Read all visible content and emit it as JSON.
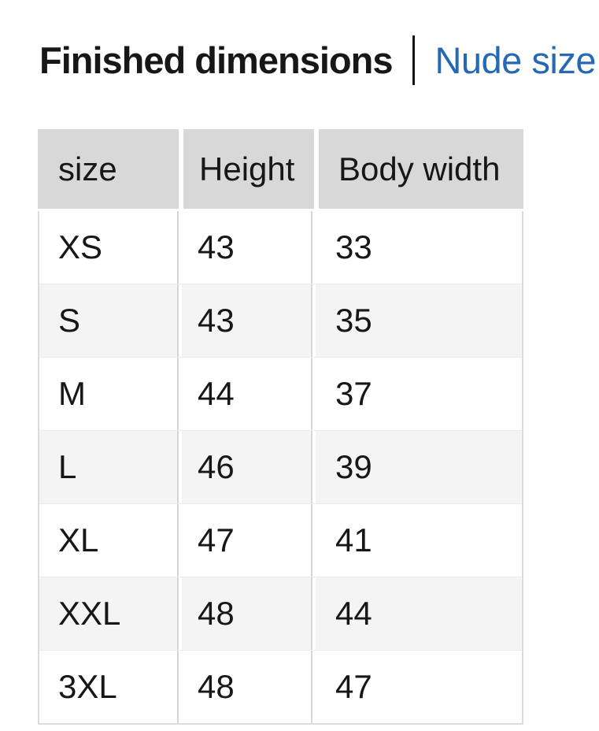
{
  "header": {
    "title": "Finished dimensions",
    "link": "Nude size"
  },
  "table": {
    "columns": [
      "size",
      "Height",
      "Body width"
    ],
    "rows": [
      {
        "size": "XS",
        "height": "43",
        "body_width": "33"
      },
      {
        "size": "S",
        "height": "43",
        "body_width": "35"
      },
      {
        "size": "M",
        "height": "44",
        "body_width": "37"
      },
      {
        "size": "L",
        "height": "46",
        "body_width": "39"
      },
      {
        "size": "XL",
        "height": "47",
        "body_width": "41"
      },
      {
        "size": "XXL",
        "height": "48",
        "body_width": "44"
      },
      {
        "size": "3XL",
        "height": "48",
        "body_width": "47"
      }
    ]
  },
  "colors": {
    "accent_blue": "#2569b5",
    "header_row_bg": "#d8d8d8",
    "alt_row_bg": "#f4f4f4",
    "column_line": "#d6d6d6",
    "table_border": "#dcdcdc",
    "row_separator": "#ececec",
    "text": "#171717",
    "divider": "#111111"
  }
}
